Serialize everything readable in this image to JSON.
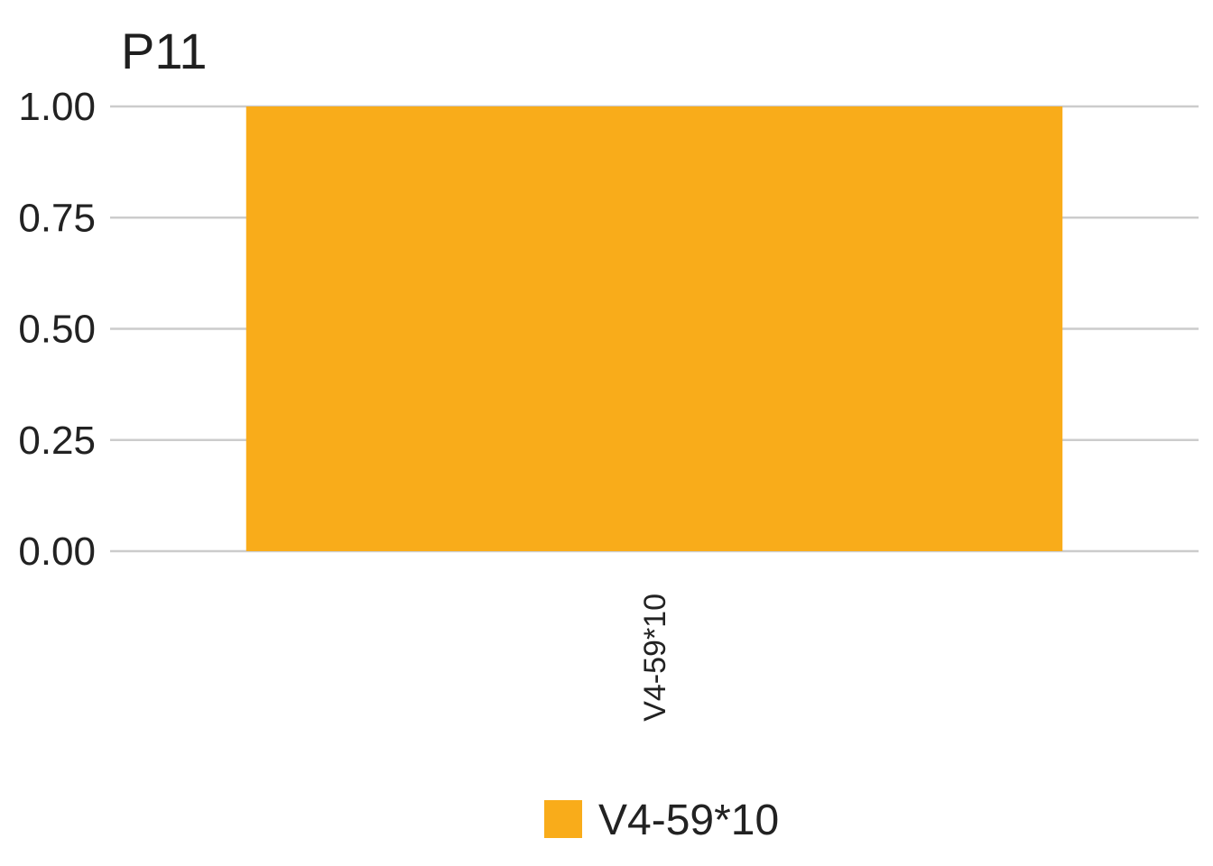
{
  "chart_data": {
    "type": "bar",
    "title": "P11",
    "xlabel": "",
    "ylabel": "",
    "categories": [
      "V4-59*10"
    ],
    "values": [
      1.0
    ],
    "ylim": [
      0,
      1
    ],
    "y_ticks": [
      "0.00",
      "0.25",
      "0.50",
      "0.75",
      "1.00"
    ],
    "y_tick_values": [
      0,
      0.25,
      0.5,
      0.75,
      1.0
    ],
    "grid": true,
    "legend": {
      "placement": "bottom",
      "entries": [
        "V4-59*10"
      ]
    },
    "colors": {
      "V4-59*10": "#f9ac1a"
    }
  }
}
